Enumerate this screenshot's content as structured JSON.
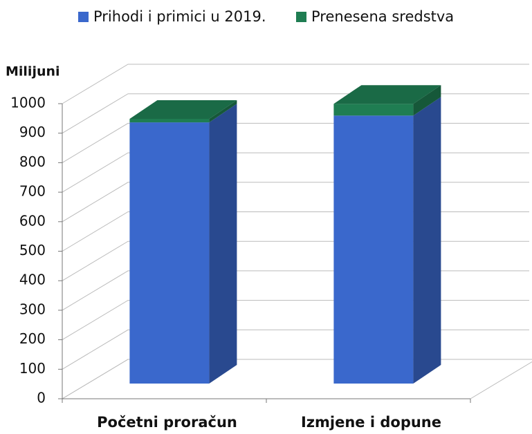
{
  "chart_data": {
    "type": "stacked-bar-3d",
    "y_label": "Milijuni",
    "categories": [
      "Početni proračun",
      "Izmjene i dopune"
    ],
    "series": [
      {
        "name": "Prihodi i primici u 2019.",
        "color": "#3a68cc",
        "values": [
          885,
          908
        ]
      },
      {
        "name": "Prenesena sredstva",
        "color": "#1f7d52",
        "values": [
          12,
          40
        ]
      }
    ],
    "ylim": [
      0,
      1000
    ],
    "yticks": [
      0,
      100,
      200,
      300,
      400,
      500,
      600,
      700,
      800,
      900,
      1000
    ],
    "grid": true,
    "legend": "top"
  }
}
